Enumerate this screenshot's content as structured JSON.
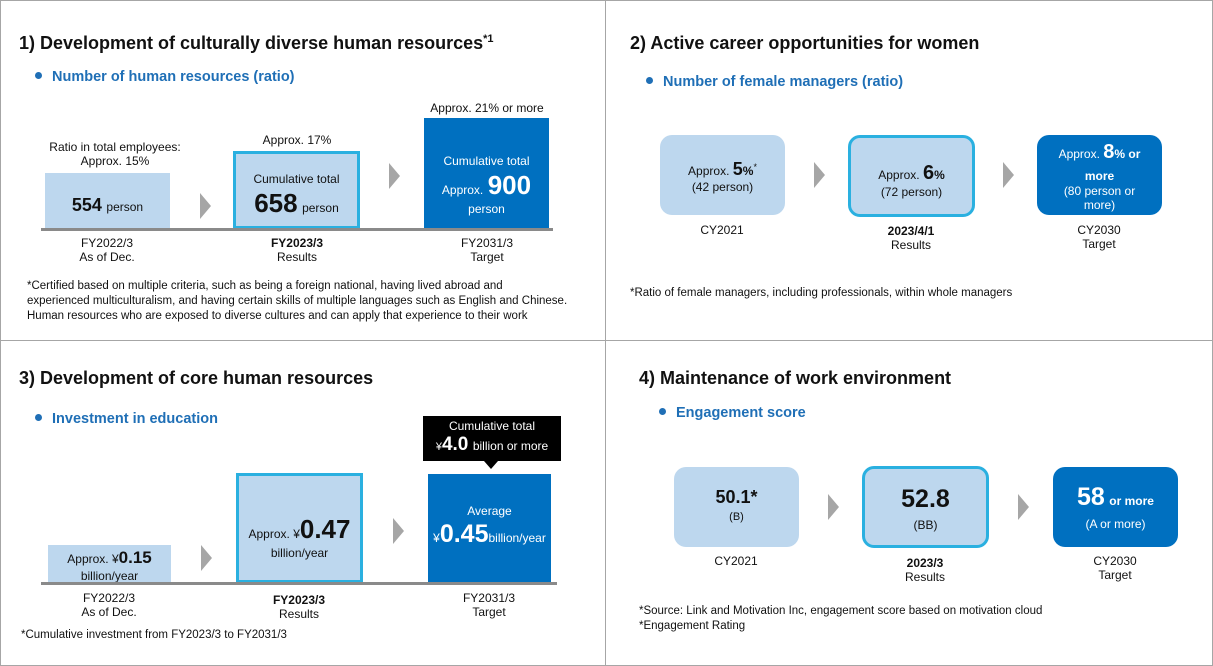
{
  "p1": {
    "title": "1) Development of culturally diverse human resources",
    "title_sup": "*1",
    "subtitle": "Number of human resources (ratio)",
    "above_0_line1": "Ratio in total employees:",
    "above_0_line2": "Approx. 15%",
    "above_1": "Approx. 17%",
    "above_2": "Approx. 21% or more",
    "bar0_num": "554",
    "bar0_unit": "person",
    "bar1_top": "Cumulative total",
    "bar1_num": "658",
    "bar1_unit": "person",
    "bar2_top": "Cumulative total",
    "bar2_pre": "Approx.",
    "bar2_num": "900",
    "bar2_unit": "person",
    "cat0_line1": "FY2022/3",
    "cat0_line2": "As of Dec.",
    "cat1_line1": "FY2023/3",
    "cat1_line2": "Results",
    "cat2_line1": "FY2031/3",
    "cat2_line2": "Target",
    "note_line1": "*Certified based on multiple criteria, such as being a foreign national, having lived abroad and",
    "note_line2": "experienced multiculturalism, and having certain skills of multiple languages such as English and Chinese.",
    "note_line3": "Human resources who are exposed to diverse cultures and can apply that experience to their work"
  },
  "p2": {
    "title": "2) Active career opportunities for women",
    "subtitle": "Number of female managers (ratio)",
    "box0_pre": "Approx.",
    "box0_num": "5",
    "box0_unit": "%",
    "box0_sup": "*",
    "box0_sub": "(42 person)",
    "box1_pre": "Approx.",
    "box1_num": "6",
    "box1_unit": "%",
    "box1_sub": "(72 person)",
    "box2_pre": "Approx.",
    "box2_num": "8",
    "box2_unit": "% or",
    "box2_line2": "more",
    "box2_sub1": "(80 person or",
    "box2_sub2": "more)",
    "cat0_line1": "CY2021",
    "cat1_line1": "2023/4/1",
    "cat1_line2": "Results",
    "cat2_line1": "CY2030",
    "cat2_line2": "Target",
    "note": "*Ratio of female managers, including professionals, within whole managers"
  },
  "p3": {
    "title": "3) Development of core human resources",
    "subtitle": "Investment in education",
    "callout_line1": "Cumulative total",
    "callout_yen": "¥",
    "callout_num": "4.0",
    "callout_unit": "billion or more",
    "bar0_pre": "Approx. ¥",
    "bar0_num": "0.15",
    "bar0_unit": "billion/year",
    "bar1_pre": "Approx. ¥",
    "bar1_num": "0.47",
    "bar1_unit": "billion/year",
    "bar2_top": "Average",
    "bar2_yen": "¥",
    "bar2_num": "0.45",
    "bar2_unit": "billion/year",
    "cat0_line1": "FY2022/3",
    "cat0_line2": "As of Dec.",
    "cat1_line1": "FY2023/3",
    "cat1_line2": "Results",
    "cat2_line1": "FY2031/3",
    "cat2_line2": "Target",
    "note": "*Cumulative investment from FY2023/3 to FY2031/3"
  },
  "p4": {
    "title": "4) Maintenance of work environment",
    "subtitle": "Engagement score",
    "box0_num": "50.1*",
    "box0_sub": "(B)",
    "box1_num": "52.8",
    "box1_sub": "(BB)",
    "box2_num": "58",
    "box2_unit": "or more",
    "box2_sub": "(A or more)",
    "cat0_line1": "CY2021",
    "cat1_line1": "2023/3",
    "cat1_line2": "Results",
    "cat2_line1": "CY2030",
    "cat2_line2": "Target",
    "note_line1": "*Source: Link and Motivation Inc, engagement score based on motivation cloud",
    "note_line2": "*Engagement Rating"
  },
  "colors": {
    "accent_blue": "#1f6fb6",
    "light_bar": "#bdd7ee",
    "outline_cyan": "#2ab0e0",
    "dark_bar": "#0070c0"
  }
}
